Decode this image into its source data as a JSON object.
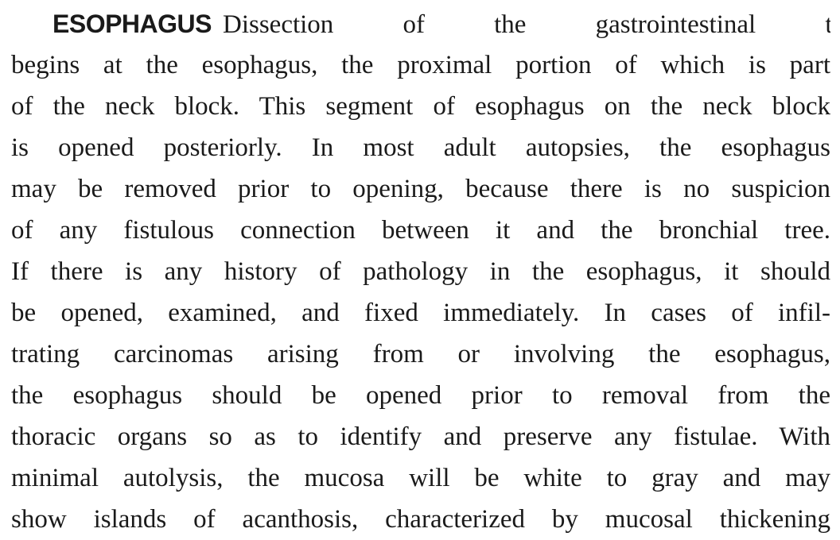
{
  "section": {
    "heading": "ESOPHAGUS",
    "lines": [
      "Dissection of the gastrointestinal tract",
      "begins at the esophagus, the proximal portion of which is part",
      "of the neck block. This segment of esophagus on the neck block",
      "is opened posteriorly. In most adult autopsies, the esophagus",
      "may be removed prior to opening, because there is no suspicion",
      "of any fistulous connection between it and the bronchial tree.",
      "If there is any history of pathology in the esophagus, it should",
      "be opened, examined, and fixed immediately. In cases of infil-",
      "trating carcinomas arising from or involving the esophagus,",
      "the esophagus should be opened prior to removal from the",
      "thoracic organs so as to identify and preserve any fistulae. With",
      "minimal autolysis, the mucosa will be white to gray and may",
      "show islands of acanthosis, characterized by mucosal thickening"
    ]
  }
}
